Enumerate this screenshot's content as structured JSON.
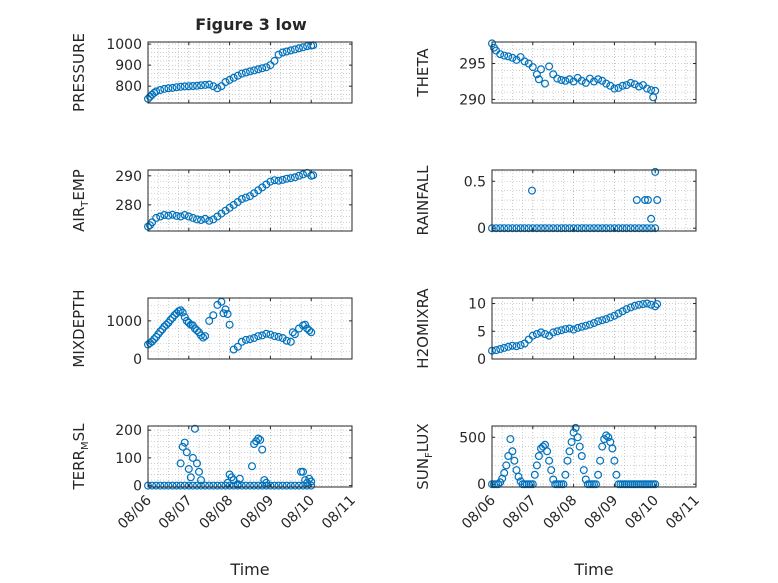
{
  "figure": {
    "title": "Figure 3 low"
  },
  "chart_data": [
    {
      "type": "scatter",
      "ylabel": "PRESSURE",
      "ylim": [
        720,
        1010
      ],
      "yticks": [
        800,
        900,
        1000
      ],
      "xticks": [
        0,
        1,
        2,
        3,
        4,
        5
      ],
      "xticklabels": [],
      "grid": true,
      "series": [
        {
          "x": [
            0,
            0.05,
            0.1,
            0.15,
            0.2,
            0.3,
            0.4,
            0.5,
            0.6,
            0.7,
            0.8,
            0.9,
            1.0,
            1.1,
            1.2,
            1.3,
            1.4,
            1.5,
            1.6,
            1.7,
            1.8,
            1.9,
            2.0,
            2.1,
            2.2,
            2.3,
            2.4,
            2.5,
            2.6,
            2.7,
            2.8,
            2.9,
            3.0,
            3.1,
            3.2,
            3.3,
            3.4,
            3.5,
            3.6,
            3.7,
            3.8,
            3.9,
            4.0,
            4.05
          ],
          "y": [
            740,
            750,
            760,
            768,
            775,
            782,
            787,
            790,
            792,
            795,
            797,
            799,
            800,
            801,
            802,
            804,
            806,
            808,
            800,
            790,
            800,
            820,
            830,
            840,
            850,
            860,
            865,
            870,
            875,
            880,
            885,
            890,
            900,
            920,
            950,
            960,
            965,
            970,
            975,
            980,
            985,
            990,
            993,
            995
          ]
        }
      ]
    },
    {
      "type": "scatter",
      "ylabel": "THETA",
      "ylim": [
        289.5,
        298
      ],
      "yticks": [
        290,
        295
      ],
      "xticks": [
        0,
        1,
        2,
        3,
        4,
        5
      ],
      "xticklabels": [],
      "grid": true,
      "series": [
        {
          "x": [
            0,
            0.05,
            0.1,
            0.2,
            0.3,
            0.4,
            0.5,
            0.6,
            0.7,
            0.8,
            0.9,
            1.0,
            1.1,
            1.15,
            1.2,
            1.3,
            1.4,
            1.5,
            1.6,
            1.7,
            1.8,
            1.9,
            2.0,
            2.1,
            2.2,
            2.3,
            2.4,
            2.5,
            2.6,
            2.7,
            2.8,
            2.9,
            3.0,
            3.1,
            3.2,
            3.3,
            3.4,
            3.5,
            3.6,
            3.7,
            3.8,
            3.9,
            3.95,
            4.0
          ],
          "y": [
            297.8,
            297.2,
            296.8,
            296.3,
            296.1,
            296.0,
            295.8,
            295.5,
            295.9,
            295.3,
            295.0,
            294.5,
            293.5,
            292.8,
            294.2,
            292.2,
            294.6,
            293.5,
            292.9,
            292.7,
            292.6,
            292.8,
            292.5,
            293.0,
            292.6,
            292.3,
            292.9,
            292.5,
            292.8,
            292.6,
            292.2,
            291.9,
            291.5,
            291.6,
            291.9,
            292.0,
            292.3,
            292.1,
            291.8,
            292.0,
            291.5,
            291.3,
            290.3,
            291.2
          ]
        }
      ]
    },
    {
      "type": "scatter",
      "ylabel": "AIR_TEMP",
      "ylim": [
        271,
        292
      ],
      "yticks": [
        280,
        290
      ],
      "xticks": [
        0,
        1,
        2,
        3,
        4,
        5
      ],
      "xticklabels": [],
      "grid": true,
      "series": [
        {
          "x": [
            0,
            0.05,
            0.1,
            0.2,
            0.3,
            0.4,
            0.5,
            0.6,
            0.7,
            0.8,
            0.9,
            1.0,
            1.1,
            1.2,
            1.3,
            1.4,
            1.5,
            1.6,
            1.7,
            1.8,
            1.9,
            2.0,
            2.1,
            2.2,
            2.3,
            2.4,
            2.5,
            2.6,
            2.7,
            2.8,
            2.9,
            3.0,
            3.1,
            3.2,
            3.3,
            3.4,
            3.5,
            3.6,
            3.7,
            3.8,
            3.9,
            4.0,
            4.05
          ],
          "y": [
            272.5,
            273.0,
            274.0,
            275.5,
            276.0,
            276.5,
            276.3,
            276.6,
            276.2,
            276.0,
            276.5,
            276.0,
            275.5,
            275.0,
            274.8,
            275.2,
            274.5,
            275.0,
            276.0,
            277.0,
            278.0,
            279.0,
            280.0,
            281.0,
            282.0,
            282.5,
            283.0,
            284.0,
            285.0,
            286.0,
            287.0,
            288.0,
            288.5,
            288.3,
            288.6,
            289.0,
            289.2,
            289.5,
            290.0,
            290.5,
            291.0,
            290.0,
            290.2
          ]
        }
      ]
    },
    {
      "type": "scatter",
      "ylabel": "RAINFALL",
      "ylim": [
        -0.03,
        0.62
      ],
      "yticks": [
        0,
        0.5
      ],
      "xticks": [
        0,
        1,
        2,
        3,
        4,
        5
      ],
      "xticklabels": [],
      "grid": true,
      "series": [
        {
          "x": [
            0,
            0.1,
            0.2,
            0.3,
            0.4,
            0.5,
            0.6,
            0.7,
            0.8,
            0.9,
            1.0,
            1.1,
            1.2,
            1.3,
            1.4,
            1.5,
            1.6,
            1.7,
            1.8,
            1.9,
            2.0,
            2.1,
            2.2,
            2.3,
            2.4,
            2.5,
            2.6,
            2.7,
            2.8,
            2.9,
            3.0,
            3.1,
            3.2,
            3.3,
            3.4,
            3.5,
            3.6,
            3.7,
            3.8,
            3.9,
            4.0,
            0.98,
            3.55,
            3.75,
            3.82,
            3.9,
            4.0,
            4.05
          ],
          "y": [
            0,
            0,
            0,
            0,
            0,
            0,
            0,
            0,
            0,
            0,
            0,
            0,
            0,
            0,
            0,
            0,
            0,
            0,
            0,
            0,
            0,
            0,
            0,
            0,
            0,
            0,
            0,
            0,
            0,
            0,
            0,
            0,
            0,
            0,
            0,
            0,
            0,
            0,
            0,
            0,
            0,
            0.4,
            0.3,
            0.3,
            0.3,
            0.1,
            0.6,
            0.3
          ]
        }
      ]
    },
    {
      "type": "scatter",
      "ylabel": "MIXDEPTH",
      "ylim": [
        0,
        1600
      ],
      "yticks": [
        0,
        1000
      ],
      "xticks": [
        0,
        1,
        2,
        3,
        4,
        5
      ],
      "xticklabels": [],
      "grid": true,
      "series": [
        {
          "x": [
            0,
            0.05,
            0.1,
            0.15,
            0.2,
            0.25,
            0.3,
            0.35,
            0.4,
            0.45,
            0.5,
            0.55,
            0.6,
            0.65,
            0.7,
            0.75,
            0.8,
            0.85,
            0.9,
            0.95,
            1.0,
            1.05,
            1.1,
            1.15,
            1.2,
            1.25,
            1.3,
            1.35,
            1.4,
            1.5,
            1.6,
            1.7,
            1.8,
            1.85,
            1.9,
            1.95,
            2.0,
            2.1,
            2.2,
            2.3,
            2.4,
            2.5,
            2.6,
            2.7,
            2.8,
            2.9,
            3.0,
            3.1,
            3.2,
            3.3,
            3.4,
            3.5,
            3.55,
            3.6,
            3.7,
            3.8,
            3.85,
            3.9,
            3.95,
            4.0
          ],
          "y": [
            380,
            420,
            460,
            520,
            580,
            650,
            720,
            780,
            850,
            900,
            950,
            1020,
            1080,
            1150,
            1200,
            1250,
            1280,
            1220,
            1100,
            1000,
            950,
            900,
            880,
            800,
            750,
            700,
            620,
            560,
            600,
            1000,
            1150,
            1420,
            1500,
            1200,
            1300,
            1180,
            900,
            250,
            320,
            450,
            500,
            520,
            550,
            600,
            620,
            660,
            640,
            600,
            580,
            550,
            480,
            450,
            700,
            650,
            800,
            880,
            900,
            800,
            750,
            700
          ]
        }
      ]
    },
    {
      "type": "scatter",
      "ylabel": "H2OMIXRA",
      "ylim": [
        0,
        11
      ],
      "yticks": [
        0,
        5,
        10
      ],
      "xticks": [
        0,
        1,
        2,
        3,
        4,
        5
      ],
      "xticklabels": [],
      "grid": true,
      "series": [
        {
          "x": [
            0,
            0.1,
            0.2,
            0.3,
            0.4,
            0.5,
            0.6,
            0.7,
            0.8,
            0.9,
            1.0,
            1.1,
            1.2,
            1.3,
            1.4,
            1.5,
            1.6,
            1.7,
            1.8,
            1.9,
            2.0,
            2.1,
            2.2,
            2.3,
            2.4,
            2.5,
            2.6,
            2.7,
            2.8,
            2.9,
            3.0,
            3.1,
            3.2,
            3.3,
            3.4,
            3.5,
            3.6,
            3.7,
            3.8,
            3.9,
            4.0,
            4.05
          ],
          "y": [
            1.5,
            1.6,
            1.8,
            2.0,
            2.2,
            2.4,
            2.3,
            2.5,
            2.8,
            3.5,
            4.2,
            4.5,
            4.8,
            4.5,
            4.2,
            4.8,
            5.0,
            5.2,
            5.4,
            5.5,
            5.3,
            5.6,
            5.8,
            6.0,
            6.2,
            6.5,
            6.8,
            7.0,
            7.2,
            7.5,
            7.8,
            8.2,
            8.6,
            9.0,
            9.3,
            9.6,
            9.8,
            9.9,
            10.0,
            9.8,
            9.5,
            9.9
          ]
        }
      ]
    },
    {
      "type": "scatter",
      "ylabel": "TERR_MSL",
      "ylim": [
        -5,
        215
      ],
      "yticks": [
        0,
        100,
        200
      ],
      "xticks": [
        0,
        1,
        2,
        3,
        4,
        5
      ],
      "xticklabels": [
        "08/06",
        "08/07",
        "08/08",
        "08/09",
        "08/10",
        "08/11"
      ],
      "xlabel": "Time",
      "grid": true,
      "series": [
        {
          "x": [
            0,
            0.1,
            0.2,
            0.3,
            0.4,
            0.5,
            0.6,
            0.7,
            0.8,
            0.9,
            1.0,
            1.1,
            1.2,
            1.3,
            1.4,
            1.5,
            1.6,
            1.7,
            1.8,
            1.9,
            2.0,
            2.1,
            2.2,
            2.3,
            2.4,
            2.5,
            2.6,
            2.7,
            2.8,
            2.9,
            3.0,
            3.1,
            3.2,
            3.3,
            3.4,
            3.5,
            3.6,
            3.7,
            3.8,
            3.9,
            4.0,
            0.8,
            0.85,
            0.9,
            0.95,
            1.0,
            1.05,
            1.1,
            1.15,
            1.2,
            1.25,
            1.3,
            1.95,
            2.0,
            2.05,
            2.1,
            2.2,
            2.25,
            2.55,
            2.6,
            2.65,
            2.7,
            2.75,
            2.8,
            2.85,
            2.9,
            3.75,
            3.8,
            3.85,
            3.9,
            3.95,
            4.0
          ],
          "y": [
            0,
            0,
            0,
            0,
            0,
            0,
            0,
            0,
            0,
            0,
            0,
            0,
            0,
            0,
            0,
            0,
            0,
            0,
            0,
            0,
            0,
            0,
            0,
            0,
            0,
            0,
            0,
            0,
            0,
            0,
            0,
            0,
            0,
            0,
            0,
            0,
            0,
            0,
            0,
            0,
            0,
            80,
            140,
            155,
            120,
            60,
            30,
            100,
            205,
            80,
            50,
            20,
            10,
            40,
            30,
            20,
            5,
            25,
            70,
            150,
            160,
            170,
            165,
            130,
            20,
            10,
            50,
            50,
            20,
            10,
            25,
            15
          ]
        }
      ]
    },
    {
      "type": "scatter",
      "ylabel": "SUN_FLUX",
      "ylim": [
        -30,
        620
      ],
      "yticks": [
        0,
        500
      ],
      "xticks": [
        0,
        1,
        2,
        3,
        4,
        5
      ],
      "xticklabels": [
        "08/06",
        "08/07",
        "08/08",
        "08/09",
        "08/10",
        "08/11"
      ],
      "xlabel": "Time",
      "grid": true,
      "series": [
        {
          "x": [
            0,
            0.05,
            0.1,
            0.15,
            0.2,
            0.25,
            0.3,
            0.35,
            0.4,
            0.45,
            0.5,
            0.55,
            0.6,
            0.65,
            0.7,
            0.75,
            0.8,
            0.85,
            0.9,
            0.95,
            1.0,
            1.05,
            1.1,
            1.15,
            1.2,
            1.25,
            1.3,
            1.35,
            1.4,
            1.45,
            1.5,
            1.55,
            1.6,
            1.65,
            1.7,
            1.75,
            1.8,
            1.85,
            1.9,
            1.95,
            2.0,
            2.05,
            2.1,
            2.15,
            2.2,
            2.25,
            2.3,
            2.35,
            2.4,
            2.45,
            2.5,
            2.55,
            2.6,
            2.65,
            2.7,
            2.75,
            2.8,
            2.85,
            2.9,
            2.95,
            3.0,
            3.05,
            3.1,
            3.15,
            3.2,
            3.25,
            3.3,
            3.35,
            3.4,
            3.45,
            3.5,
            3.55,
            3.6,
            3.65,
            3.7,
            3.75,
            3.8,
            3.85,
            3.9,
            3.95,
            4.0
          ],
          "y": [
            0,
            0,
            0,
            0,
            20,
            60,
            120,
            200,
            300,
            480,
            350,
            250,
            150,
            80,
            30,
            0,
            0,
            0,
            0,
            0,
            0,
            100,
            200,
            300,
            380,
            400,
            420,
            350,
            250,
            150,
            50,
            0,
            0,
            0,
            0,
            0,
            100,
            250,
            350,
            450,
            550,
            600,
            500,
            400,
            300,
            150,
            50,
            0,
            0,
            0,
            0,
            0,
            100,
            250,
            400,
            480,
            520,
            500,
            450,
            380,
            250,
            100,
            0,
            0,
            0,
            0,
            0,
            0,
            0,
            0,
            0,
            0,
            0,
            0,
            0,
            0,
            0,
            0,
            0,
            0,
            0
          ]
        }
      ]
    }
  ]
}
